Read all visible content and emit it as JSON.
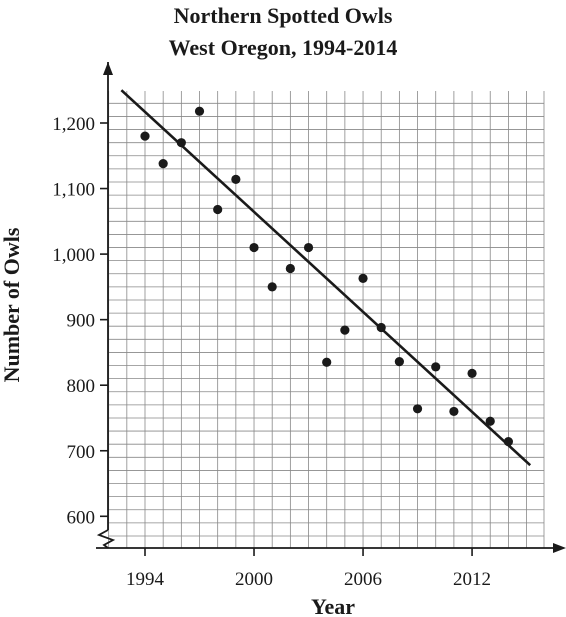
{
  "chart_data": {
    "type": "scatter",
    "title": "Northern Spotted Owls",
    "subtitle": "West Oregon, 1994-2014",
    "xlabel": "Year",
    "ylabel": "Number of Owls",
    "xlim": [
      1994,
      2015
    ],
    "ylim": [
      600,
      1250
    ],
    "x_ticks": [
      1994,
      2000,
      2006,
      2012
    ],
    "x_tick_labels": [
      "1994",
      "2000",
      "2006",
      "2012"
    ],
    "y_ticks": [
      600,
      700,
      800,
      900,
      1000,
      1100,
      1200
    ],
    "y_tick_labels": [
      "600",
      "700",
      "800",
      "900",
      "1,000",
      "1,100",
      "1,200"
    ],
    "grid": true,
    "points": [
      {
        "x": 1994,
        "y": 1180
      },
      {
        "x": 1995,
        "y": 1138
      },
      {
        "x": 1996,
        "y": 1170
      },
      {
        "x": 1997,
        "y": 1218
      },
      {
        "x": 1998,
        "y": 1068
      },
      {
        "x": 1999,
        "y": 1114
      },
      {
        "x": 2000,
        "y": 1010
      },
      {
        "x": 2001,
        "y": 950
      },
      {
        "x": 2002,
        "y": 978
      },
      {
        "x": 2003,
        "y": 1010
      },
      {
        "x": 2004,
        "y": 835
      },
      {
        "x": 2005,
        "y": 884
      },
      {
        "x": 2006,
        "y": 963
      },
      {
        "x": 2007,
        "y": 888
      },
      {
        "x": 2008,
        "y": 836
      },
      {
        "x": 2009,
        "y": 764
      },
      {
        "x": 2010,
        "y": 828
      },
      {
        "x": 2011,
        "y": 760
      },
      {
        "x": 2012,
        "y": 818
      },
      {
        "x": 2013,
        "y": 745
      },
      {
        "x": 2014,
        "y": 714
      }
    ],
    "line_of_best_fit": {
      "x": [
        1992.7,
        2015.2
      ],
      "y": [
        1250,
        678
      ]
    }
  }
}
